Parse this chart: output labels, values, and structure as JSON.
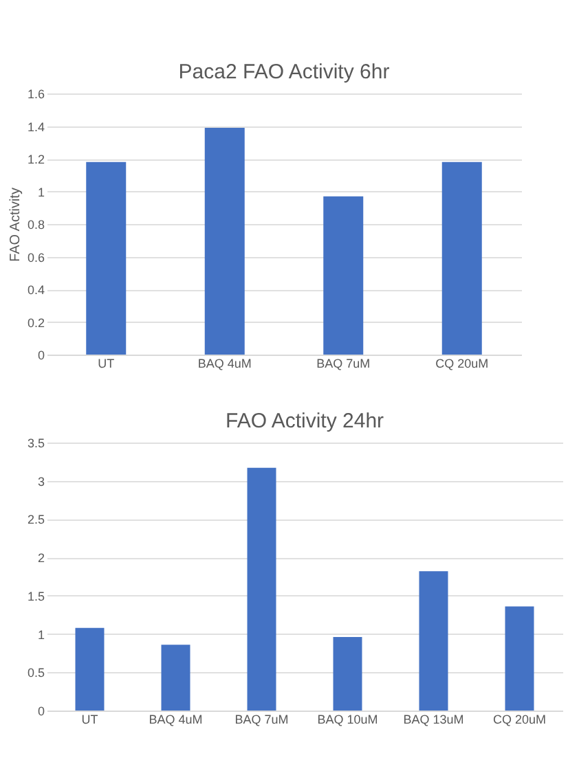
{
  "chart_data": [
    {
      "type": "bar",
      "title": "Paca2 FAO Activity 6hr",
      "ylabel": "FAO Activity",
      "categories": [
        "UT",
        "BAQ 4uM",
        "BAQ 7uM",
        "CQ 20uM"
      ],
      "values": [
        1.18,
        1.39,
        0.97,
        1.18
      ],
      "color": "#4472c4",
      "ylim": [
        0,
        1.6
      ],
      "yticks": [
        0,
        0.2,
        0.4,
        0.6,
        0.8,
        1,
        1.2,
        1.4,
        1.6
      ],
      "grid": "y"
    },
    {
      "type": "bar",
      "title": "FAO Activity 24hr",
      "categories": [
        "UT",
        "BAQ 4uM",
        "BAQ 7uM",
        "BAQ 10uM",
        "BAQ 13uM",
        "CQ 20uM"
      ],
      "values": [
        1.08,
        0.86,
        3.17,
        0.96,
        1.82,
        1.36
      ],
      "color": "#4472c4",
      "ylim": [
        0,
        3.5
      ],
      "yticks": [
        0,
        0.5,
        1,
        1.5,
        2,
        2.5,
        3,
        3.5
      ],
      "grid": "y"
    }
  ]
}
